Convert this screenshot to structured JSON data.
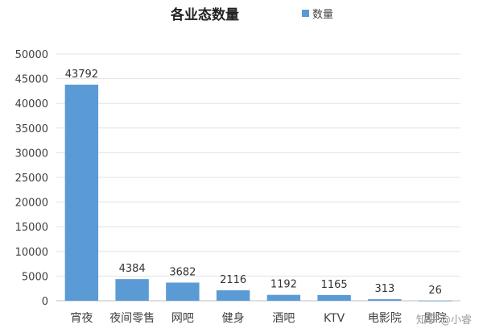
{
  "chart_data": {
    "type": "bar",
    "title": "各业态数量",
    "series": [
      {
        "name": "数量",
        "values": [
          43792,
          4384,
          3682,
          2116,
          1192,
          1165,
          313,
          26
        ]
      }
    ],
    "categories": [
      "宵夜",
      "夜间零售",
      "网吧",
      "健身",
      "酒吧",
      "KTV",
      "电影院",
      "剧院"
    ],
    "data_labels": [
      "43792",
      "4384",
      "3682",
      "2116",
      "1192",
      "1165",
      "313",
      "26"
    ],
    "ylim": [
      0,
      50000
    ],
    "yticks": [
      0,
      5000,
      10000,
      15000,
      20000,
      25000,
      30000,
      35000,
      40000,
      45000,
      50000
    ],
    "ytick_labels": [
      "0",
      "5000",
      "10000",
      "15000",
      "20000",
      "25000",
      "30000",
      "35000",
      "40000",
      "45000",
      "50000"
    ],
    "grid": true,
    "legend_position": "top-right",
    "bar_color": "#5b9bd5"
  },
  "watermark": "知乎 @小睿"
}
